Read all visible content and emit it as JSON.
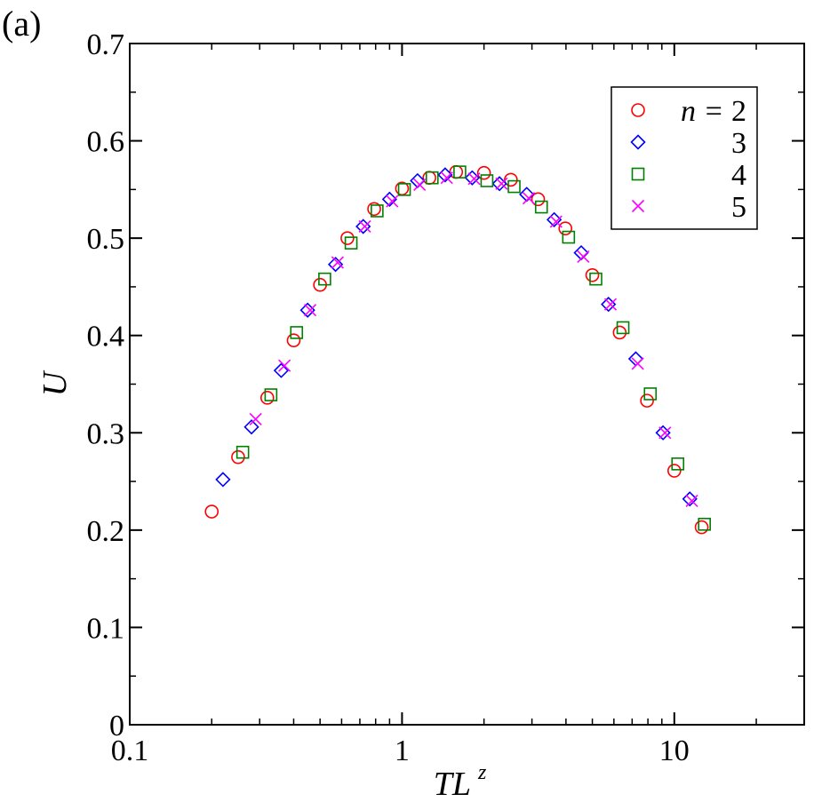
{
  "panel_label": "(a)",
  "chart_data": {
    "type": "scatter",
    "title": "",
    "xlabel": "TL",
    "xlabel_superscript": "z",
    "ylabel": "U",
    "xscale": "log",
    "xlim": [
      0.1,
      30
    ],
    "ylim": [
      0,
      0.7
    ],
    "x_ticks": [
      {
        "value": 0.1,
        "label": "0.1"
      },
      {
        "value": 1,
        "label": "1"
      },
      {
        "value": 10,
        "label": "10"
      }
    ],
    "y_ticks": [
      {
        "value": 0,
        "label": "0"
      },
      {
        "value": 0.1,
        "label": "0.1"
      },
      {
        "value": 0.2,
        "label": "0.2"
      },
      {
        "value": 0.3,
        "label": "0.3"
      },
      {
        "value": 0.4,
        "label": "0.4"
      },
      {
        "value": 0.5,
        "label": "0.5"
      },
      {
        "value": 0.6,
        "label": "0.6"
      },
      {
        "value": 0.7,
        "label": "0.7"
      }
    ],
    "legend_position": "top-right",
    "legend_prefix": "n = ",
    "series": [
      {
        "name": "2",
        "marker": "circle",
        "color": "#ff0000",
        "points": [
          [
            0.2,
            0.219
          ],
          [
            0.25,
            0.275
          ],
          [
            0.32,
            0.336
          ],
          [
            0.4,
            0.395
          ],
          [
            0.5,
            0.452
          ],
          [
            0.63,
            0.5
          ],
          [
            0.79,
            0.53
          ],
          [
            1.0,
            0.551
          ],
          [
            1.26,
            0.562
          ],
          [
            1.58,
            0.568
          ],
          [
            2.0,
            0.567
          ],
          [
            2.51,
            0.56
          ],
          [
            3.16,
            0.54
          ],
          [
            3.98,
            0.51
          ],
          [
            5.0,
            0.462
          ],
          [
            6.3,
            0.403
          ],
          [
            7.94,
            0.333
          ],
          [
            10.0,
            0.261
          ],
          [
            12.6,
            0.203
          ]
        ]
      },
      {
        "name": "3",
        "marker": "diamond",
        "color": "#0000ff",
        "points": [
          [
            0.22,
            0.252
          ],
          [
            0.28,
            0.306
          ],
          [
            0.36,
            0.364
          ],
          [
            0.45,
            0.426
          ],
          [
            0.57,
            0.473
          ],
          [
            0.72,
            0.512
          ],
          [
            0.9,
            0.54
          ],
          [
            1.14,
            0.559
          ],
          [
            1.44,
            0.565
          ],
          [
            1.81,
            0.562
          ],
          [
            2.28,
            0.556
          ],
          [
            2.87,
            0.545
          ],
          [
            3.62,
            0.519
          ],
          [
            4.55,
            0.485
          ],
          [
            5.73,
            0.432
          ],
          [
            7.22,
            0.376
          ],
          [
            9.09,
            0.3
          ],
          [
            11.4,
            0.232
          ]
        ]
      },
      {
        "name": "4",
        "marker": "square",
        "color": "#008000",
        "points": [
          [
            0.26,
            0.28
          ],
          [
            0.33,
            0.339
          ],
          [
            0.41,
            0.403
          ],
          [
            0.52,
            0.458
          ],
          [
            0.65,
            0.495
          ],
          [
            0.81,
            0.528
          ],
          [
            1.02,
            0.55
          ],
          [
            1.29,
            0.562
          ],
          [
            1.63,
            0.568
          ],
          [
            2.05,
            0.559
          ],
          [
            2.58,
            0.553
          ],
          [
            3.25,
            0.532
          ],
          [
            4.09,
            0.501
          ],
          [
            5.15,
            0.458
          ],
          [
            6.48,
            0.408
          ],
          [
            8.16,
            0.34
          ],
          [
            10.3,
            0.268
          ],
          [
            12.9,
            0.206
          ]
        ]
      },
      {
        "name": "5",
        "marker": "cross",
        "color": "#ff00ff",
        "points": [
          [
            0.29,
            0.314
          ],
          [
            0.37,
            0.369
          ],
          [
            0.46,
            0.426
          ],
          [
            0.58,
            0.475
          ],
          [
            0.73,
            0.512
          ],
          [
            0.92,
            0.538
          ],
          [
            1.16,
            0.555
          ],
          [
            1.46,
            0.562
          ],
          [
            1.84,
            0.561
          ],
          [
            2.32,
            0.556
          ],
          [
            2.92,
            0.541
          ],
          [
            3.68,
            0.517
          ],
          [
            4.63,
            0.481
          ],
          [
            5.83,
            0.432
          ],
          [
            7.34,
            0.371
          ],
          [
            9.24,
            0.3
          ],
          [
            11.6,
            0.23
          ]
        ]
      }
    ]
  }
}
